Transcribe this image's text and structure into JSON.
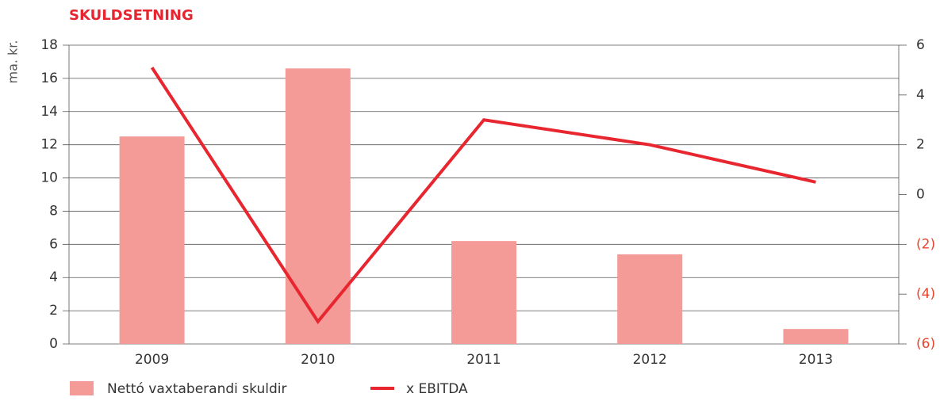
{
  "chart_data": {
    "type": "bar_line",
    "title": "SKULDSETNING",
    "y_label": "ma. kr.",
    "categories": [
      "2009",
      "2010",
      "2011",
      "2012",
      "2013"
    ],
    "series": [
      {
        "name": "Nettó vaxtaberandi skuldir",
        "color": "#f49b98",
        "type": "bar",
        "values": [
          12.5,
          16.6,
          6.2,
          5.4,
          0.9
        ]
      },
      {
        "name": "x EBITDA",
        "color": "#e8262f",
        "type": "line",
        "axis": "y2",
        "values": [
          5.1,
          -5.1,
          3.0,
          2.0,
          0.5
        ]
      }
    ],
    "ylim": [
      0,
      18
    ],
    "yticks": [
      0,
      2,
      4,
      6,
      8,
      10,
      12,
      14,
      16,
      18
    ],
    "y2lim": [
      -6,
      6
    ],
    "y2ticks": [
      {
        "value": -6,
        "label": "(6)"
      },
      {
        "value": -4,
        "label": "(4)"
      },
      {
        "value": -2,
        "label": "(2)"
      },
      0,
      2,
      4,
      6
    ],
    "y2_negative_color": "#e8452c",
    "title_color": "#e52630",
    "grid": true
  }
}
